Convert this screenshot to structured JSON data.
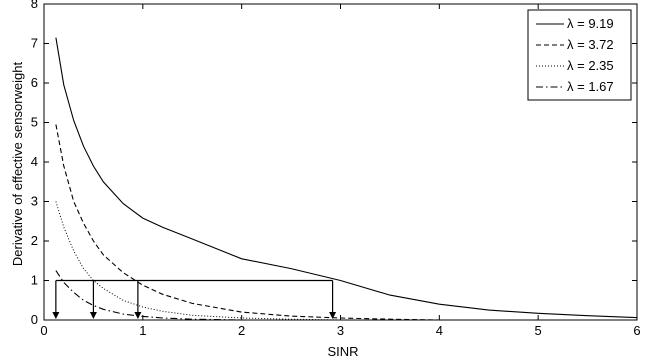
{
  "chart_data": {
    "type": "line",
    "xlabel": "SINR",
    "ylabel": "Derivative of effective sensorweight",
    "xlim": [
      0,
      6
    ],
    "ylim": [
      0,
      8
    ],
    "xticks": [
      "0",
      "1",
      "2",
      "3",
      "4",
      "5",
      "6"
    ],
    "yticks": [
      "0",
      "1",
      "2",
      "3",
      "4",
      "5",
      "6",
      "7",
      "8"
    ],
    "grid": false,
    "legend_position": "top-right",
    "series": [
      {
        "name": "λ = 9.19",
        "style": "solid",
        "x": [
          0.12,
          0.2,
          0.3,
          0.4,
          0.5,
          0.6,
          0.8,
          1.0,
          1.2,
          1.5,
          1.8,
          2.0,
          2.5,
          3.0,
          3.5,
          4.0,
          4.5,
          5.0,
          5.5,
          6.0
        ],
        "y": [
          7.15,
          5.95,
          5.05,
          4.4,
          3.9,
          3.5,
          2.95,
          2.58,
          2.35,
          2.05,
          1.75,
          1.55,
          1.3,
          1.0,
          0.63,
          0.4,
          0.25,
          0.17,
          0.11,
          0.06
        ]
      },
      {
        "name": "λ = 3.72",
        "style": "dashed",
        "x": [
          0.12,
          0.2,
          0.3,
          0.4,
          0.5,
          0.6,
          0.8,
          1.0,
          1.2,
          1.5,
          2.0,
          2.5,
          3.0,
          3.5,
          4.0
        ],
        "y": [
          4.95,
          3.9,
          3.0,
          2.45,
          2.0,
          1.65,
          1.2,
          0.88,
          0.65,
          0.42,
          0.2,
          0.1,
          0.05,
          0.02,
          0.0
        ]
      },
      {
        "name": "λ = 2.35",
        "style": "dotted",
        "x": [
          0.12,
          0.2,
          0.3,
          0.4,
          0.5,
          0.6,
          0.8,
          1.0,
          1.2,
          1.5,
          2.0,
          2.5,
          3.0
        ],
        "y": [
          3.0,
          2.35,
          1.75,
          1.3,
          1.0,
          0.8,
          0.5,
          0.33,
          0.22,
          0.12,
          0.05,
          0.02,
          0.0
        ]
      },
      {
        "name": "λ = 1.67",
        "style": "dashdot",
        "x": [
          0.12,
          0.2,
          0.3,
          0.4,
          0.5,
          0.6,
          0.8,
          1.0,
          1.2,
          1.5,
          2.0,
          2.5
        ],
        "y": [
          1.25,
          0.95,
          0.7,
          0.5,
          0.37,
          0.27,
          0.15,
          0.09,
          0.05,
          0.02,
          0.0,
          0.0
        ]
      }
    ],
    "reference_line": {
      "y": 1,
      "x_start": 0.12,
      "x_end": 2.92
    },
    "arrows": [
      {
        "x": 0.12,
        "y_from": 1,
        "y_to": 0
      },
      {
        "x": 0.5,
        "y_from": 1,
        "y_to": 0
      },
      {
        "x": 0.95,
        "y_from": 1,
        "y_to": 0
      },
      {
        "x": 2.92,
        "y_from": 1,
        "y_to": 0
      }
    ]
  }
}
